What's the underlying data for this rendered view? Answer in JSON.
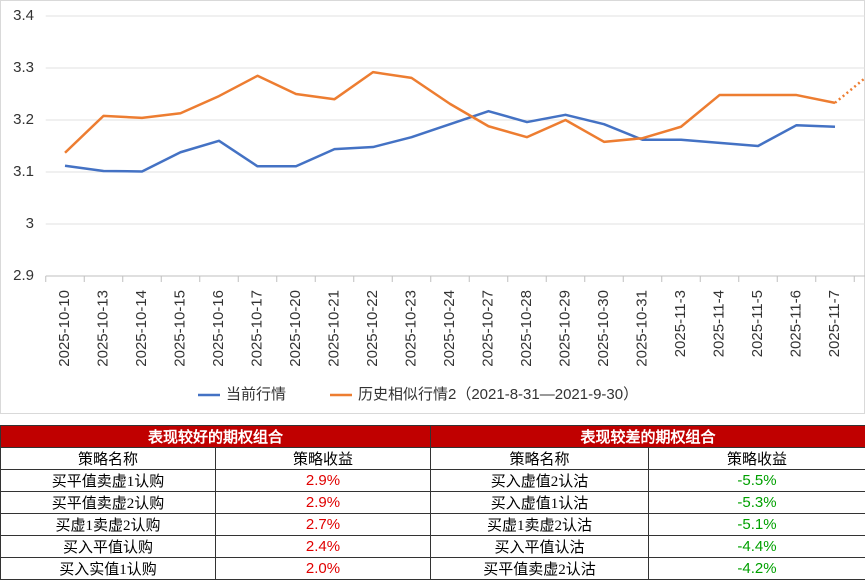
{
  "chart_data": {
    "type": "line",
    "categories": [
      "2025-10-10",
      "2025-10-13",
      "2025-10-14",
      "2025-10-15",
      "2025-10-16",
      "2025-10-17",
      "2025-10-20",
      "2025-10-21",
      "2025-10-22",
      "2025-10-23",
      "2025-10-24",
      "2025-10-27",
      "2025-10-28",
      "2025-10-29",
      "2025-10-30",
      "2025-10-31",
      "2025-11-3",
      "2025-11-4",
      "2025-11-5",
      "2025-11-6",
      "2025-11-7",
      null
    ],
    "series": [
      {
        "name": "当前行情",
        "color": "#4472c4",
        "values": [
          3.112,
          3.102,
          3.101,
          3.138,
          3.16,
          3.111,
          3.111,
          3.144,
          3.148,
          3.167,
          3.192,
          3.217,
          3.196,
          3.21,
          3.192,
          3.162,
          3.162,
          3.156,
          3.15,
          3.19,
          3.187,
          null
        ]
      },
      {
        "name": "历史相似行情2（2021-8-31—2021-9-30）",
        "color": "#ed7d31",
        "values": [
          3.137,
          3.208,
          3.204,
          3.213,
          3.246,
          3.285,
          3.25,
          3.24,
          3.292,
          3.281,
          3.231,
          3.188,
          3.167,
          3.2,
          3.158,
          3.165,
          3.187,
          3.248,
          3.248,
          3.248,
          3.233,
          3.294
        ],
        "dotted_from": 20
      }
    ],
    "ylim": [
      2.9,
      3.4
    ],
    "yticks": [
      2.9,
      3,
      3.1,
      3.2,
      3.3,
      3.4
    ],
    "grid": true,
    "legend": "bottom"
  },
  "table": {
    "groups": [
      "表现较好的期权组合",
      "表现较差的期权组合"
    ],
    "headers": [
      "策略名称",
      "策略收益",
      "策略名称",
      "策略收益"
    ],
    "rows": [
      [
        "买平值卖虚1认购",
        "2.9%",
        "买入虚值2认沽",
        "-5.5%"
      ],
      [
        "买平值卖虚2认购",
        "2.9%",
        "买入虚值1认沽",
        "-5.3%"
      ],
      [
        "买虚1卖虚2认购",
        "2.7%",
        "买虚1卖虚2认沽",
        "-5.1%"
      ],
      [
        "买入平值认购",
        "2.4%",
        "买入平值认沽",
        "-4.4%"
      ],
      [
        "买入实值1认购",
        "2.0%",
        "买平值卖虚2认沽",
        "-4.2%"
      ]
    ]
  }
}
